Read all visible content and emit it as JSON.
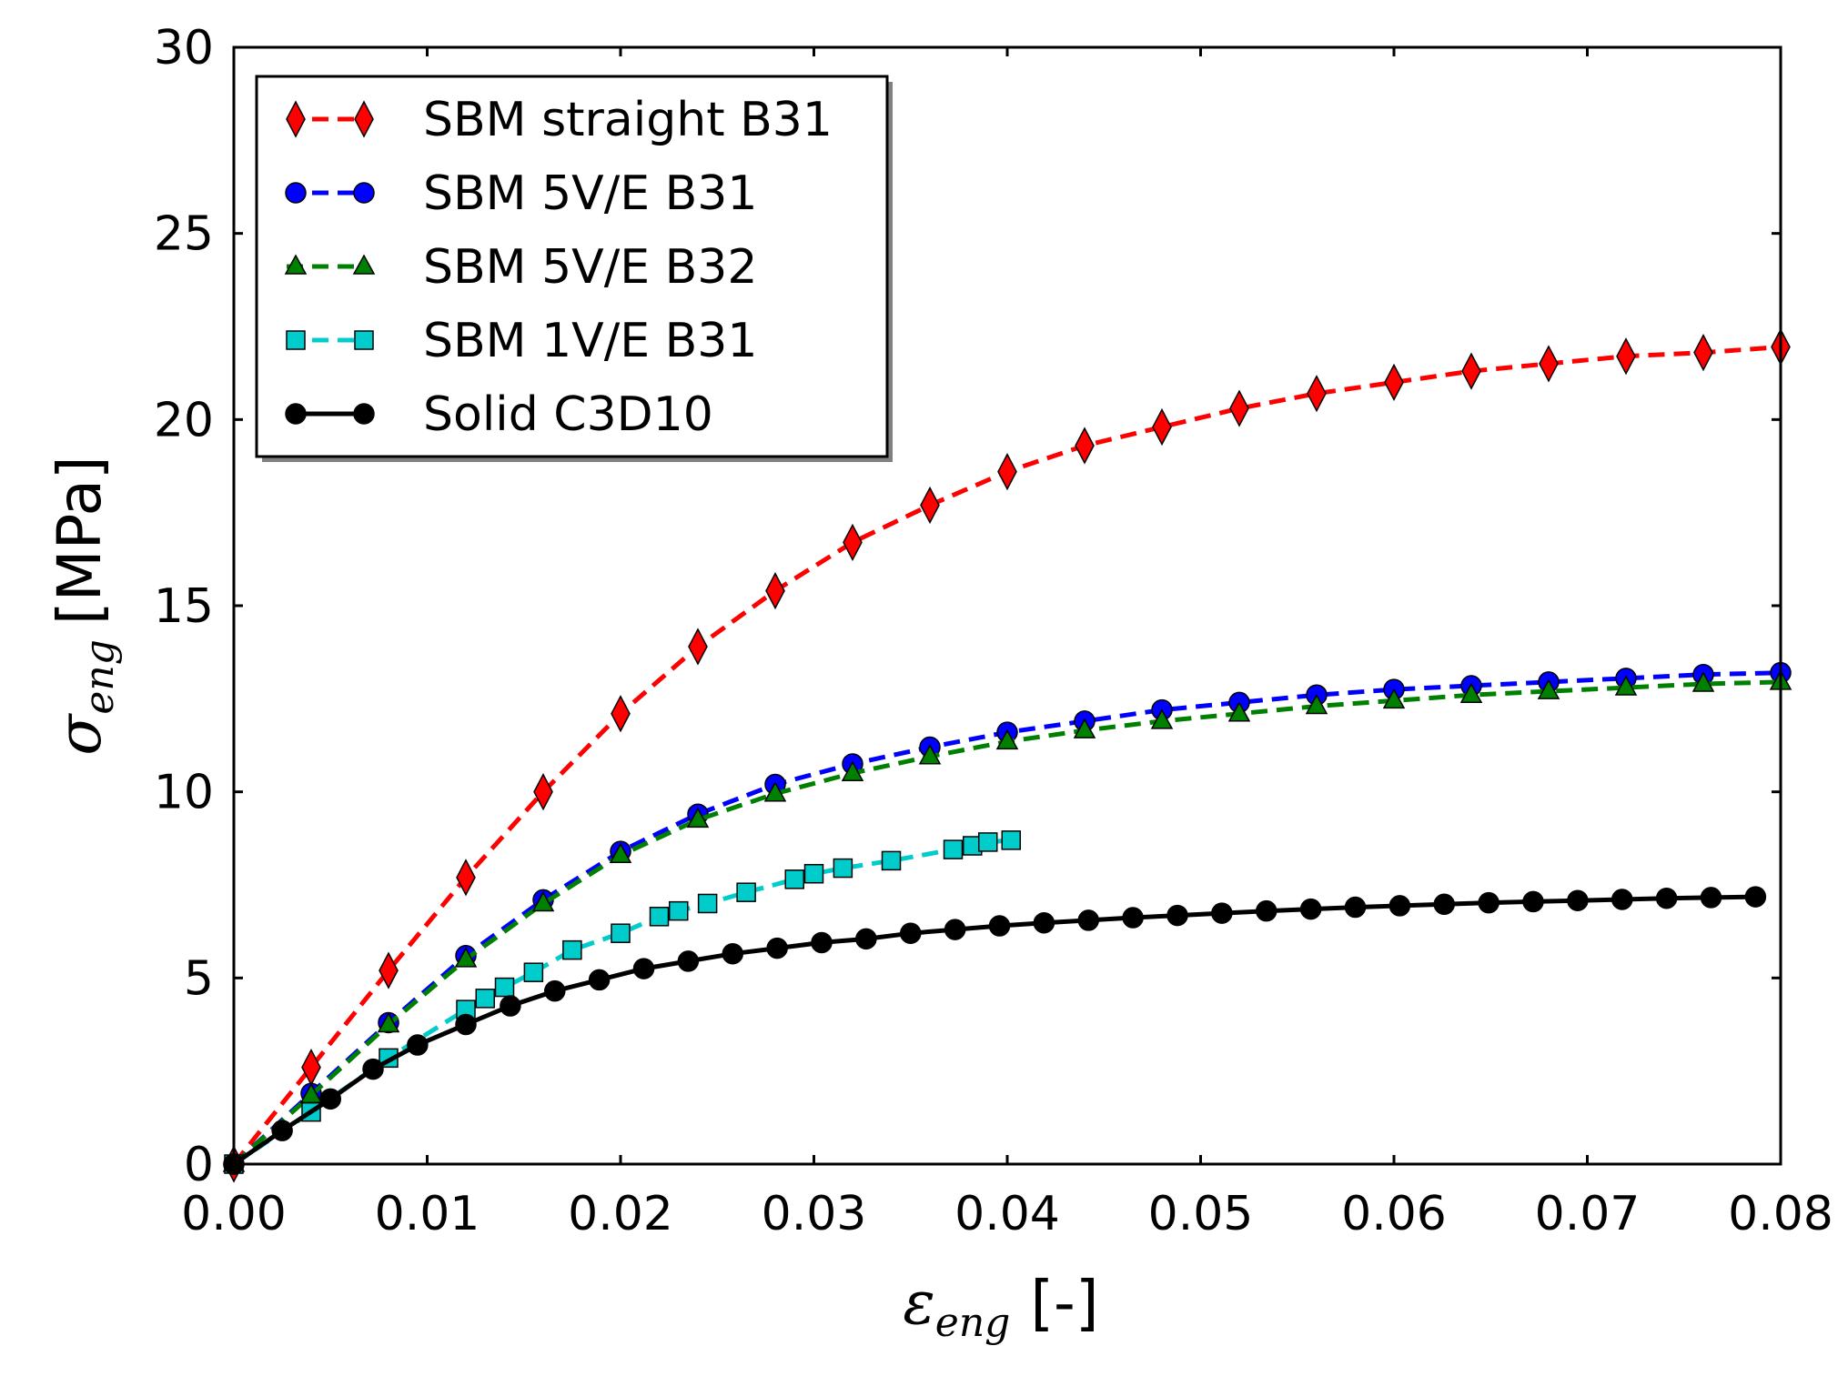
{
  "chart_data": {
    "type": "line",
    "title": "",
    "xlabel": {
      "symbol": "ε",
      "subscript": "eng",
      "unit": "[-]"
    },
    "ylabel": {
      "symbol": "σ",
      "subscript": "eng",
      "unit": "[MPa]"
    },
    "xlim": [
      0,
      0.08
    ],
    "ylim": [
      0,
      30
    ],
    "xticks": [
      0.0,
      0.01,
      0.02,
      0.03,
      0.04,
      0.05,
      0.06,
      0.07,
      0.08
    ],
    "xtick_labels": [
      "0.00",
      "0.01",
      "0.02",
      "0.03",
      "0.04",
      "0.05",
      "0.06",
      "0.07",
      "0.08"
    ],
    "yticks": [
      0,
      5,
      10,
      15,
      20,
      25,
      30
    ],
    "ytick_labels": [
      "0",
      "5",
      "10",
      "15",
      "20",
      "25",
      "30"
    ],
    "grid": false,
    "legend_position": "top-left",
    "series": [
      {
        "name": "SBM straight B31",
        "color": "#ff0000",
        "marker": "diamond",
        "line_style": "dashed",
        "x": [
          0,
          0.004,
          0.008,
          0.012,
          0.016,
          0.02,
          0.024,
          0.028,
          0.032,
          0.036,
          0.04,
          0.044,
          0.048,
          0.052,
          0.056,
          0.06,
          0.064,
          0.068,
          0.072,
          0.076,
          0.08
        ],
        "y": [
          0,
          2.6,
          5.2,
          7.7,
          10.0,
          12.1,
          13.9,
          15.4,
          16.7,
          17.7,
          18.6,
          19.3,
          19.8,
          20.3,
          20.7,
          21.0,
          21.3,
          21.5,
          21.7,
          21.8,
          21.95
        ]
      },
      {
        "name": "SBM 5V/E B31",
        "color": "#0000ff",
        "marker": "circle",
        "line_style": "dashed",
        "x": [
          0,
          0.004,
          0.008,
          0.012,
          0.016,
          0.02,
          0.024,
          0.028,
          0.032,
          0.036,
          0.04,
          0.044,
          0.048,
          0.052,
          0.056,
          0.06,
          0.064,
          0.068,
          0.072,
          0.076,
          0.08
        ],
        "y": [
          0,
          1.9,
          3.8,
          5.6,
          7.1,
          8.4,
          9.4,
          10.2,
          10.75,
          11.2,
          11.6,
          11.9,
          12.2,
          12.4,
          12.6,
          12.75,
          12.85,
          12.95,
          13.05,
          13.15,
          13.2
        ]
      },
      {
        "name": "SBM 5V/E B32",
        "color": "#008000",
        "marker": "triangle",
        "line_style": "dashed",
        "x": [
          0,
          0.004,
          0.008,
          0.012,
          0.016,
          0.02,
          0.024,
          0.028,
          0.032,
          0.036,
          0.04,
          0.044,
          0.048,
          0.052,
          0.056,
          0.06,
          0.064,
          0.068,
          0.072,
          0.076,
          0.08
        ],
        "y": [
          0,
          1.85,
          3.75,
          5.5,
          7.0,
          8.3,
          9.25,
          9.95,
          10.5,
          10.95,
          11.35,
          11.65,
          11.9,
          12.1,
          12.3,
          12.45,
          12.6,
          12.7,
          12.8,
          12.9,
          12.95
        ]
      },
      {
        "name": "SBM 1V/E B31",
        "color": "#00cccc",
        "marker": "square",
        "line_style": "dashed",
        "x": [
          0,
          0.004,
          0.008,
          0.012,
          0.013,
          0.014,
          0.0155,
          0.0175,
          0.02,
          0.022,
          0.023,
          0.0245,
          0.0265,
          0.029,
          0.03,
          0.0315,
          0.034,
          0.0372,
          0.0382,
          0.039,
          0.0402
        ],
        "y": [
          0,
          1.4,
          2.85,
          4.15,
          4.45,
          4.75,
          5.15,
          5.75,
          6.2,
          6.65,
          6.8,
          7.0,
          7.3,
          7.65,
          7.8,
          7.95,
          8.15,
          8.45,
          8.55,
          8.65,
          8.7
        ]
      },
      {
        "name": "Solid C3D10",
        "color": "#000000",
        "marker": "circle",
        "line_style": "solid",
        "x": [
          0,
          0.0025,
          0.005,
          0.0072,
          0.0095,
          0.012,
          0.0143,
          0.0166,
          0.0189,
          0.0212,
          0.0235,
          0.0258,
          0.0281,
          0.0304,
          0.0327,
          0.035,
          0.0373,
          0.0396,
          0.0419,
          0.0442,
          0.0465,
          0.0488,
          0.0511,
          0.0534,
          0.0557,
          0.058,
          0.0603,
          0.0626,
          0.0649,
          0.0672,
          0.0695,
          0.0718,
          0.0741,
          0.0764,
          0.0787
        ],
        "y": [
          0,
          0.9,
          1.75,
          2.55,
          3.2,
          3.75,
          4.25,
          4.65,
          4.95,
          5.25,
          5.45,
          5.65,
          5.8,
          5.95,
          6.05,
          6.2,
          6.3,
          6.4,
          6.48,
          6.55,
          6.62,
          6.68,
          6.74,
          6.8,
          6.85,
          6.9,
          6.94,
          6.98,
          7.02,
          7.05,
          7.08,
          7.11,
          7.14,
          7.16,
          7.18
        ]
      }
    ]
  }
}
